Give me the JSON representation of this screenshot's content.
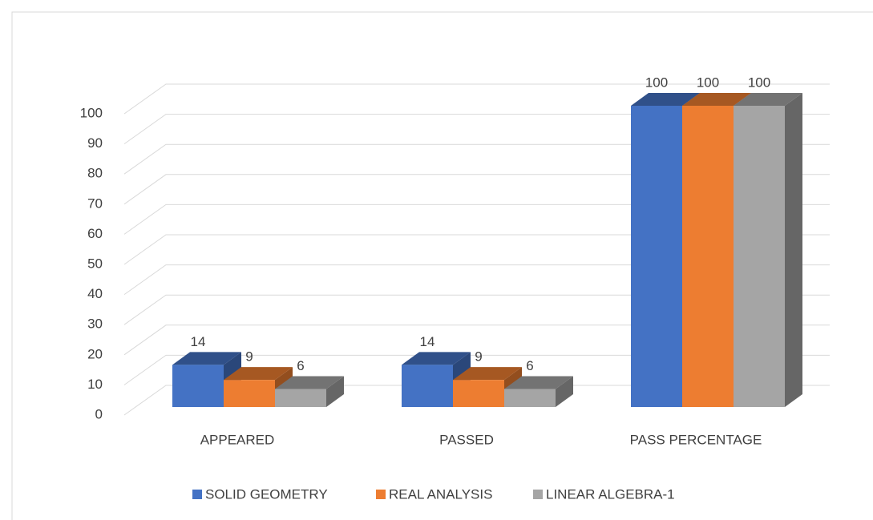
{
  "chart_data": {
    "type": "bar3d",
    "categories": [
      "APPEARED",
      "PASSED",
      "PASS PERCENTAGE"
    ],
    "series": [
      {
        "name": "SOLID GEOMETRY",
        "color": "#4472c4",
        "values": [
          14,
          14,
          100
        ]
      },
      {
        "name": "REAL ANALYSIS",
        "color": "#ed7d31",
        "values": [
          9,
          9,
          100
        ]
      },
      {
        "name": "LINEAR ALGEBRA-1",
        "color": "#a5a5a5",
        "values": [
          6,
          6,
          100
        ]
      }
    ],
    "ylim": [
      0,
      100
    ],
    "yticks": [
      0,
      10,
      20,
      30,
      40,
      50,
      60,
      70,
      80,
      90,
      100
    ],
    "grid": true,
    "legend": "bottom"
  }
}
